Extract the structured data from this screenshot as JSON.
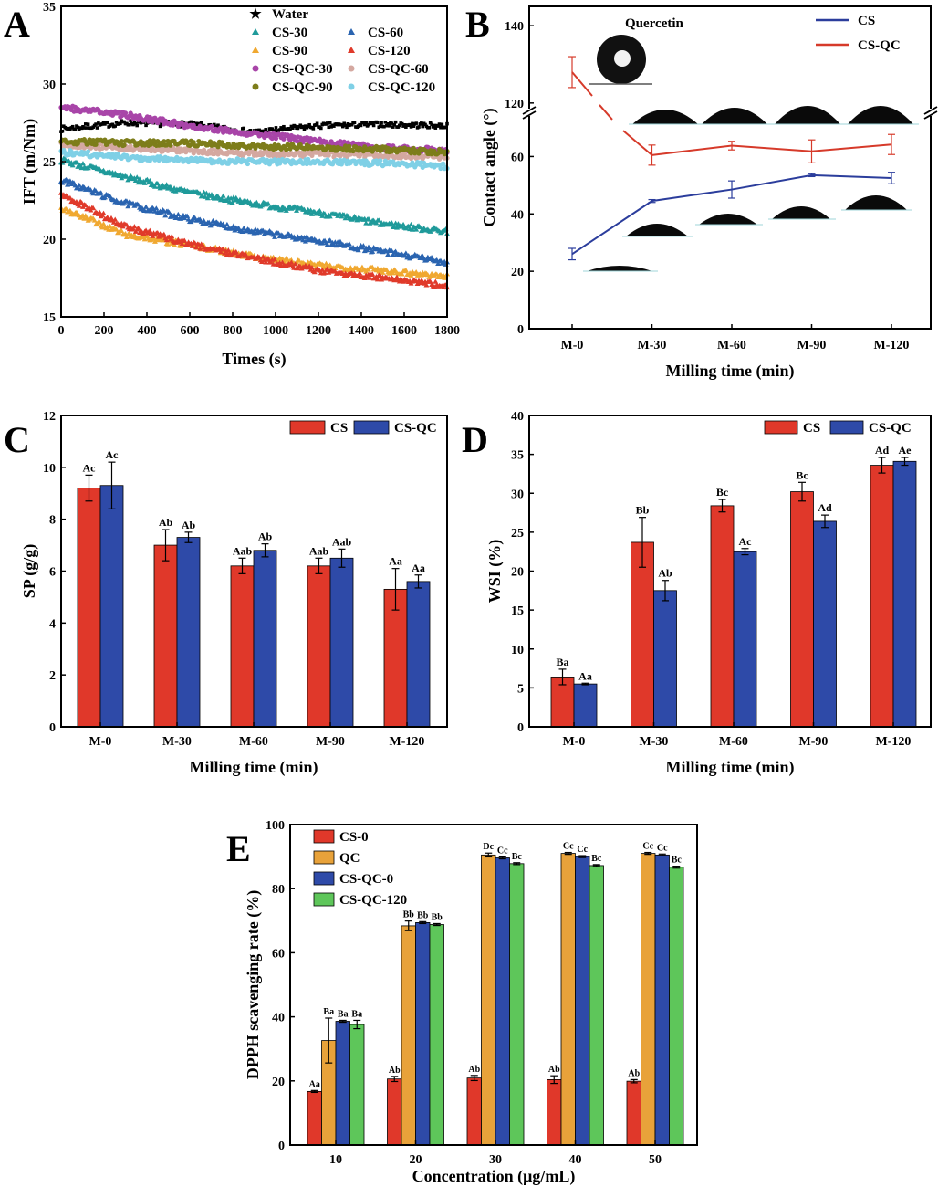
{
  "chart_data": [
    {
      "panel": "A",
      "type": "scatter",
      "xlabel": "Times (s)",
      "ylabel": "IFT (m/Nm)",
      "xlim": [
        0,
        1800
      ],
      "ylim": [
        15,
        35
      ],
      "xticks": [
        "0",
        "200",
        "400",
        "600",
        "800",
        "1000",
        "1200",
        "1400",
        "1600",
        "1800"
      ],
      "yticks": [
        "15",
        "20",
        "25",
        "30",
        "35"
      ],
      "legend_position": "top-right",
      "series": [
        {
          "name": "Water",
          "color": "#000000",
          "marker": "star",
          "x": [
            0,
            300,
            600,
            900,
            1200,
            1500,
            1800
          ],
          "values": [
            27.1,
            27.5,
            27.4,
            26.9,
            27.3,
            27.4,
            27.3
          ]
        },
        {
          "name": "CS-30",
          "color": "#1f9a9a",
          "marker": "triangle",
          "x": [
            0,
            300,
            600,
            900,
            1200,
            1500,
            1800
          ],
          "values": [
            25.1,
            24.0,
            23.0,
            22.3,
            21.7,
            21.0,
            20.5
          ]
        },
        {
          "name": "CS-60",
          "color": "#2a64b0",
          "marker": "triangle",
          "x": [
            0,
            300,
            600,
            900,
            1200,
            1500,
            1800
          ],
          "values": [
            23.8,
            22.3,
            21.3,
            20.5,
            19.9,
            19.2,
            18.5
          ]
        },
        {
          "name": "CS-90",
          "color": "#f0a830",
          "marker": "triangle",
          "x": [
            0,
            300,
            600,
            900,
            1200,
            1500,
            1800
          ],
          "values": [
            22.0,
            20.3,
            19.6,
            18.9,
            18.3,
            18.0,
            17.6
          ]
        },
        {
          "name": "CS-120",
          "color": "#e03a2a",
          "marker": "triangle",
          "x": [
            0,
            300,
            600,
            900,
            1200,
            1500,
            1800
          ],
          "values": [
            22.9,
            20.8,
            19.7,
            18.8,
            18.0,
            17.5,
            17.0
          ]
        },
        {
          "name": "CS-QC-30",
          "color": "#a845a8",
          "marker": "circle",
          "x": [
            0,
            300,
            600,
            900,
            1200,
            1500,
            1800
          ],
          "values": [
            28.5,
            28.0,
            27.3,
            26.8,
            26.3,
            25.9,
            25.7
          ]
        },
        {
          "name": "CS-QC-60",
          "color": "#d4a8a0",
          "marker": "circle",
          "x": [
            0,
            300,
            600,
            900,
            1200,
            1500,
            1800
          ],
          "values": [
            26.1,
            25.9,
            25.7,
            25.5,
            25.5,
            25.4,
            25.3
          ]
        },
        {
          "name": "CS-QC-90",
          "color": "#7d7d1a",
          "marker": "circle",
          "x": [
            0,
            300,
            600,
            900,
            1200,
            1500,
            1800
          ],
          "values": [
            26.3,
            26.2,
            26.2,
            26.0,
            25.9,
            25.8,
            25.6
          ]
        },
        {
          "name": "CS-QC-120",
          "color": "#7fd0e6",
          "marker": "circle",
          "x": [
            0,
            300,
            600,
            900,
            1200,
            1500,
            1800
          ],
          "values": [
            25.6,
            25.3,
            25.1,
            25.0,
            25.0,
            24.9,
            24.7
          ]
        }
      ]
    },
    {
      "panel": "B",
      "type": "line",
      "xlabel": "Milling time (min)",
      "ylabel": "Contact angle (°)",
      "categories": [
        "M-0",
        "M-30",
        "M-60",
        "M-90",
        "M-120"
      ],
      "yticks": [
        "0",
        "20",
        "40",
        "60",
        "120",
        "140"
      ],
      "axis_break": [
        70,
        115
      ],
      "inset_label": "Quercetin",
      "legend_position": "top-right",
      "series": [
        {
          "name": "CS",
          "color": "#2b3d9c",
          "values": [
            26,
            44.5,
            48.5,
            53.5,
            52.5
          ],
          "errors": [
            2,
            0.5,
            3,
            0.5,
            2
          ]
        },
        {
          "name": "CS-QC",
          "color": "#d63a2a",
          "values": [
            128,
            60.5,
            63.8,
            61.8,
            64.2
          ],
          "errors": [
            4,
            3.5,
            1.5,
            4,
            3.5
          ]
        }
      ]
    },
    {
      "panel": "C",
      "type": "bar",
      "xlabel": "Milling time (min)",
      "ylabel": "SP (g/g)",
      "categories": [
        "M-0",
        "M-30",
        "M-60",
        "M-90",
        "M-120"
      ],
      "ylim": [
        0,
        12
      ],
      "yticks": [
        "0",
        "2",
        "4",
        "6",
        "8",
        "10",
        "12"
      ],
      "legend_position": "top-right",
      "series": [
        {
          "name": "CS",
          "color": "#e0382a",
          "values": [
            9.2,
            7.0,
            6.2,
            6.2,
            5.3
          ],
          "errors": [
            0.5,
            0.6,
            0.3,
            0.3,
            0.8
          ],
          "labels": [
            "Ac",
            "Ab",
            "Aab",
            "Aab",
            "Aa"
          ]
        },
        {
          "name": "CS-QC",
          "color": "#2e4aa8",
          "values": [
            9.3,
            7.3,
            6.8,
            6.5,
            5.6
          ],
          "errors": [
            0.9,
            0.2,
            0.25,
            0.35,
            0.25
          ],
          "labels": [
            "Ac",
            "Ab",
            "Ab",
            "Aab",
            "Aa"
          ]
        }
      ]
    },
    {
      "panel": "D",
      "type": "bar",
      "xlabel": "Milling time (min)",
      "ylabel": "WSI (%)",
      "categories": [
        "M-0",
        "M-30",
        "M-60",
        "M-90",
        "M-120"
      ],
      "ylim": [
        0,
        40
      ],
      "yticks": [
        "0",
        "5",
        "10",
        "15",
        "20",
        "25",
        "30",
        "35",
        "40"
      ],
      "legend_position": "top-right",
      "series": [
        {
          "name": "CS",
          "color": "#e0382a",
          "values": [
            6.4,
            23.7,
            28.4,
            30.2,
            33.6
          ],
          "errors": [
            1.0,
            3.2,
            0.8,
            1.2,
            1.0
          ],
          "labels": [
            "Ba",
            "Bb",
            "Bc",
            "Bc",
            "Ad"
          ]
        },
        {
          "name": "CS-QC",
          "color": "#2e4aa8",
          "values": [
            5.5,
            17.5,
            22.5,
            26.4,
            34.1
          ],
          "errors": [
            0.1,
            1.3,
            0.4,
            0.8,
            0.5
          ],
          "labels": [
            "Aa",
            "Ab",
            "Ac",
            "Ad",
            "Ae"
          ]
        }
      ]
    },
    {
      "panel": "E",
      "type": "bar",
      "xlabel": "Concentration (μg/mL)",
      "ylabel": "DPPH scavenging rate (%)",
      "categories": [
        "10",
        "20",
        "30",
        "40",
        "50"
      ],
      "ylim": [
        0,
        100
      ],
      "yticks": [
        "0",
        "20",
        "40",
        "60",
        "80",
        "100"
      ],
      "legend_position": "top-left",
      "series": [
        {
          "name": "CS-0",
          "color": "#e0382a",
          "values": [
            16.7,
            20.6,
            20.9,
            20.4,
            19.9
          ],
          "errors": [
            0.3,
            0.8,
            0.8,
            1.2,
            0.5
          ],
          "labels": [
            "Aa",
            "Ab",
            "Ab",
            "Ab",
            "Ab"
          ]
        },
        {
          "name": "QC",
          "color": "#e8a23a",
          "values": [
            32.6,
            68.4,
            90.5,
            91.0,
            91.0
          ],
          "errors": [
            7.0,
            1.5,
            0.6,
            0.3,
            0.3
          ],
          "labels": [
            "Ba",
            "Bb",
            "Dc",
            "Cc",
            "Cc"
          ]
        },
        {
          "name": "CS-QC-0",
          "color": "#2e4aa8",
          "values": [
            38.6,
            69.4,
            89.6,
            90.0,
            90.5
          ],
          "errors": [
            0.3,
            0.3,
            0.3,
            0.3,
            0.3
          ],
          "labels": [
            "Ba",
            "Bb",
            "Cc",
            "Cc",
            "Cc"
          ]
        },
        {
          "name": "CS-QC-120",
          "color": "#5ec65a",
          "values": [
            37.6,
            68.8,
            87.8,
            87.2,
            86.7
          ],
          "errors": [
            1.3,
            0.3,
            0.3,
            0.3,
            0.3
          ],
          "labels": [
            "Ba",
            "Bb",
            "Bc",
            "Bc",
            "Bc"
          ]
        }
      ]
    }
  ]
}
